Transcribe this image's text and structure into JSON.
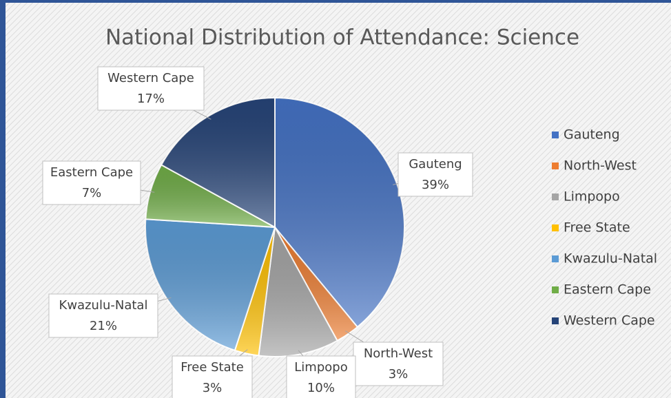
{
  "chart_data": {
    "type": "pie",
    "title": "National Distribution of Attendance: Science",
    "categories": [
      "Gauteng",
      "North-West",
      "Limpopo",
      "Free State",
      "Kwazulu-Natal",
      "Eastern Cape",
      "Western Cape"
    ],
    "values": [
      39,
      3,
      10,
      3,
      21,
      7,
      17
    ],
    "value_labels": [
      "39%",
      "3%",
      "10%",
      "3%",
      "21%",
      "7%",
      "17%"
    ],
    "colors": [
      "#4472c4",
      "#ed7d31",
      "#a5a5a5",
      "#ffc000",
      "#5b9bd5",
      "#70ad47",
      "#264478"
    ],
    "legend": "right"
  }
}
